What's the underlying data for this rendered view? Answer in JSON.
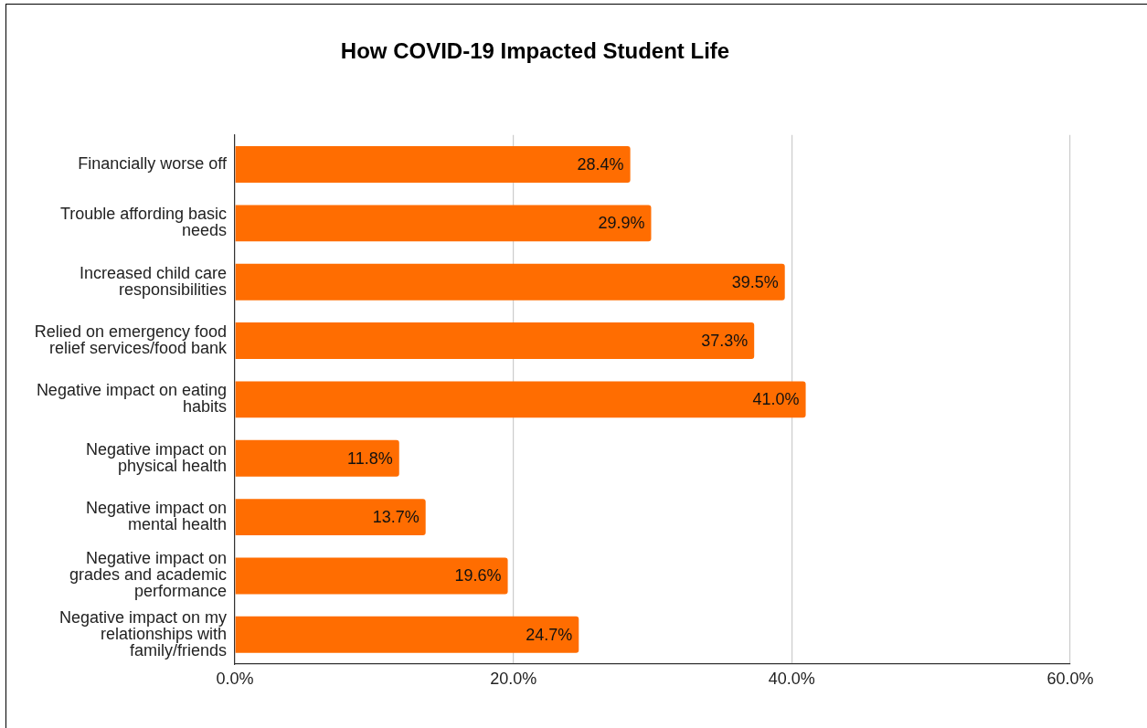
{
  "chart_data": {
    "type": "bar",
    "orientation": "horizontal",
    "title": "How COVID-19 Impacted Student Life",
    "categories": [
      "Financially worse off",
      "Trouble affording basic needs",
      "Increased child care responsibilities",
      "Relied on emergency food relief services/food bank",
      "Negative impact on eating habits",
      "Negative impact on physical health",
      "Negative impact on mental health",
      "Negative impact on grades and academic performance",
      "Negative impact on my relationships with family/friends"
    ],
    "values": [
      28.4,
      29.9,
      39.5,
      37.3,
      41.0,
      11.8,
      13.7,
      19.6,
      24.7
    ],
    "value_labels": [
      "28.4%",
      "29.9%",
      "39.5%",
      "37.3%",
      "41.0%",
      "11.8%",
      "13.7%",
      "19.6%",
      "24.7%"
    ],
    "color": "#ff6d01",
    "xlim": [
      0,
      60
    ],
    "xticks": [
      {
        "value": 0,
        "label": "0.0%"
      },
      {
        "value": 20,
        "label": "20.0%"
      },
      {
        "value": 40,
        "label": "40.0%"
      },
      {
        "value": 60,
        "label": "60.0%"
      }
    ],
    "grid": "x"
  }
}
